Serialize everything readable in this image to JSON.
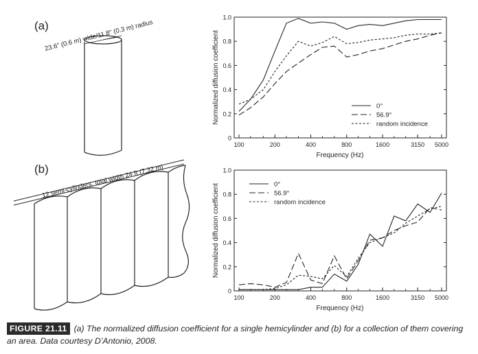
{
  "panels": [
    {
      "label": "(a)",
      "annotation": "23.6\" (0.6 m) wide/11.8\" (0.3 m) radius"
    },
    {
      "label": "(b)",
      "annotation": "12 semi-cylinders, total width 24 ft (7.32 m)"
    }
  ],
  "caption": {
    "figure_label": "FIGURE 21.11",
    "text": "(a) The normalized diffusion coefficient for a single hemicylinder and (b) for a collection of them covering an area. Data courtesy D’Antonio, 2008."
  },
  "chart_data": [
    {
      "type": "line",
      "title": "",
      "xlabel": "Frequency (Hz)",
      "ylabel": "Normalized diffusion coefficient",
      "x_scale": "log",
      "x": [
        100,
        125,
        160,
        200,
        250,
        315,
        400,
        500,
        630,
        800,
        1000,
        1250,
        1600,
        2000,
        2500,
        3150,
        4000,
        5000
      ],
      "xticks": [
        "100",
        "200",
        "400",
        "800",
        "1600",
        "3150",
        "5000"
      ],
      "ylim": [
        0,
        1.0
      ],
      "yticks": [
        "0",
        "0.2",
        "0.4",
        "0.6",
        "0.8",
        "1.0"
      ],
      "legend_position": "bottom-right",
      "series": [
        {
          "name": "0°",
          "dash": "solid",
          "values": [
            0.22,
            0.32,
            0.48,
            0.72,
            0.95,
            0.99,
            0.95,
            0.96,
            0.95,
            0.9,
            0.93,
            0.94,
            0.93,
            0.95,
            0.97,
            0.98,
            0.98,
            0.98
          ]
        },
        {
          "name": "56.9°",
          "dash": "long",
          "values": [
            0.19,
            0.25,
            0.34,
            0.45,
            0.55,
            0.62,
            0.69,
            0.75,
            0.76,
            0.67,
            0.69,
            0.72,
            0.74,
            0.77,
            0.8,
            0.82,
            0.85,
            0.87
          ]
        },
        {
          "name": "random incidence",
          "dash": "short",
          "values": [
            0.28,
            0.32,
            0.4,
            0.55,
            0.68,
            0.8,
            0.76,
            0.79,
            0.84,
            0.78,
            0.79,
            0.81,
            0.82,
            0.83,
            0.85,
            0.86,
            0.86,
            0.87
          ]
        }
      ]
    },
    {
      "type": "line",
      "title": "",
      "xlabel": "Frequency (Hz)",
      "ylabel": "Normalized diffusion coefficient",
      "x_scale": "log",
      "x": [
        100,
        125,
        160,
        200,
        250,
        315,
        400,
        500,
        630,
        800,
        1000,
        1250,
        1600,
        2000,
        2500,
        3150,
        4000,
        5000
      ],
      "xticks": [
        "100",
        "200",
        "400",
        "800",
        "1600",
        "3150",
        "5000"
      ],
      "ylim": [
        0,
        1.0
      ],
      "yticks": [
        "0",
        "0.2",
        "0.4",
        "0.6",
        "0.8",
        "1.0"
      ],
      "legend_position": "top-left",
      "series": [
        {
          "name": "0°",
          "dash": "solid",
          "values": [
            0.01,
            0.01,
            0.01,
            0.01,
            0.01,
            0.01,
            0.03,
            0.03,
            0.14,
            0.08,
            0.22,
            0.47,
            0.37,
            0.62,
            0.58,
            0.72,
            0.65,
            0.81
          ]
        },
        {
          "name": "56.9°",
          "dash": "long",
          "values": [
            0.05,
            0.06,
            0.05,
            0.03,
            0.07,
            0.31,
            0.09,
            0.06,
            0.29,
            0.1,
            0.25,
            0.42,
            0.44,
            0.5,
            0.54,
            0.57,
            0.69,
            0.67
          ]
        },
        {
          "name": "random incidence",
          "dash": "short",
          "values": [
            0.01,
            0.01,
            0.01,
            0.02,
            0.05,
            0.13,
            0.12,
            0.1,
            0.21,
            0.12,
            0.27,
            0.4,
            0.44,
            0.48,
            0.56,
            0.62,
            0.68,
            0.7
          ]
        }
      ]
    }
  ]
}
